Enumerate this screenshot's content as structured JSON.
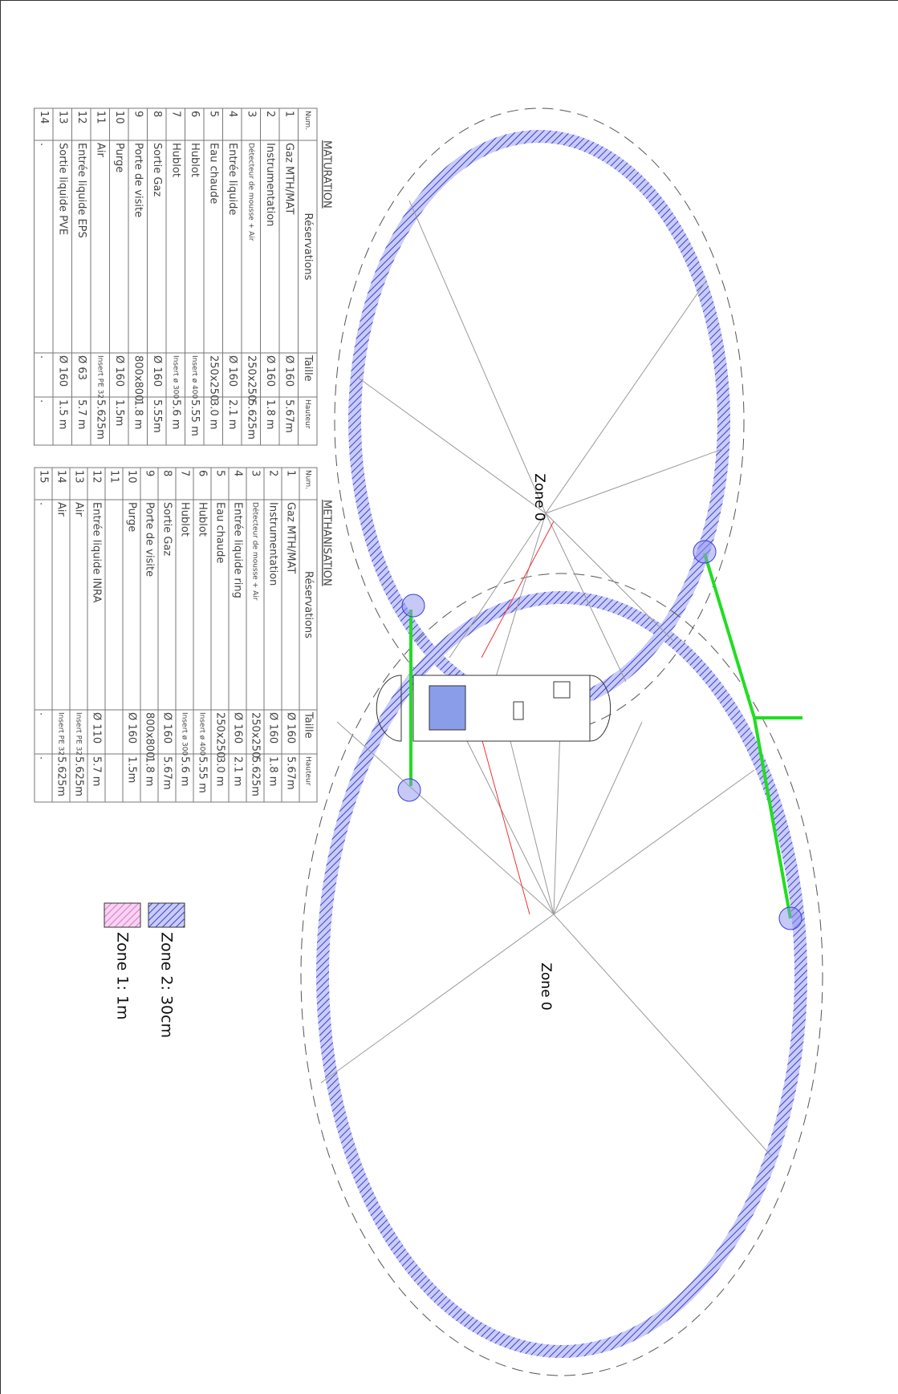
{
  "tables": [
    {
      "title": "MATURATION",
      "headers": [
        "Num.",
        "Réservations",
        "Taille",
        "Hauteur"
      ],
      "rows": [
        [
          "1",
          "Gaz MTH/MAT",
          "Ø 160",
          "5.67m"
        ],
        [
          "2",
          "Instrumentation",
          "Ø 160",
          "1.8 m"
        ],
        [
          "3",
          "Détecteur de mousse + Air",
          "250x250",
          "5.625m"
        ],
        [
          "4",
          "Entrée liquide",
          "Ø 160",
          "2.1 m"
        ],
        [
          "5",
          "Eau chaude",
          "250x250",
          "3.0 m"
        ],
        [
          "6",
          "Hublot",
          "Insert ø 400",
          "5.55 m"
        ],
        [
          "7",
          "Hublot",
          "Insert ø 300",
          "5.6 m"
        ],
        [
          "8",
          "Sortie Gaz",
          "Ø 160",
          "5.55m"
        ],
        [
          "9",
          "Porte de visite",
          "800x800",
          "1.8 m"
        ],
        [
          "10",
          "Purge",
          "Ø 160",
          "1.5m"
        ],
        [
          "11",
          "Air",
          "Insert PE 32",
          "5.625m"
        ],
        [
          "12",
          "Entrée liquide EPS",
          "Ø 63",
          "5.7 m"
        ],
        [
          "13",
          "Sortie liquide PVE",
          "Ø 160",
          "1.5 m"
        ],
        [
          "14",
          ".",
          ".",
          "."
        ]
      ]
    },
    {
      "title": "METHANISATION",
      "headers": [
        "Num.",
        "Réservations",
        "Taille",
        "Hauteur"
      ],
      "rows": [
        [
          "1",
          "Gaz MTH/MAT",
          "Ø 160",
          "5.67m"
        ],
        [
          "2",
          "Instrumentation",
          "Ø 160",
          "1.8 m"
        ],
        [
          "3",
          "Détecteur de mousse + Air",
          "250x250",
          "5.625m"
        ],
        [
          "4",
          "Entrée liquide ring",
          "Ø 160",
          "2.1 m"
        ],
        [
          "5",
          "Eau chaude",
          "250x250",
          "3.0 m"
        ],
        [
          "6",
          "Hublot",
          "Insert ø 400",
          "5.55 m"
        ],
        [
          "7",
          "Hublot",
          "Insert ø 300",
          "5.6 m"
        ],
        [
          "8",
          "Sortie Gaz",
          "Ø 160",
          "5.67m"
        ],
        [
          "9",
          "Porte de visite",
          "800x800",
          "1.8 m"
        ],
        [
          "10",
          "Purge",
          "Ø 160",
          "1.5m"
        ],
        [
          "11"
        ],
        [
          "12",
          "Entrée liquide INRA",
          "Ø 110",
          "5.7 m"
        ],
        [
          "13",
          "Air",
          "Insert PE 32",
          "5.625m"
        ],
        [
          "14",
          "Air",
          "Insert PE 32",
          "5.625m"
        ],
        [
          "15",
          ".",
          ".",
          "."
        ]
      ]
    }
  ],
  "zones": [
    "Zone 0",
    "Zone 0"
  ],
  "legend": [
    "Zone 2: 30cm",
    "Zone 1: 1m"
  ]
}
